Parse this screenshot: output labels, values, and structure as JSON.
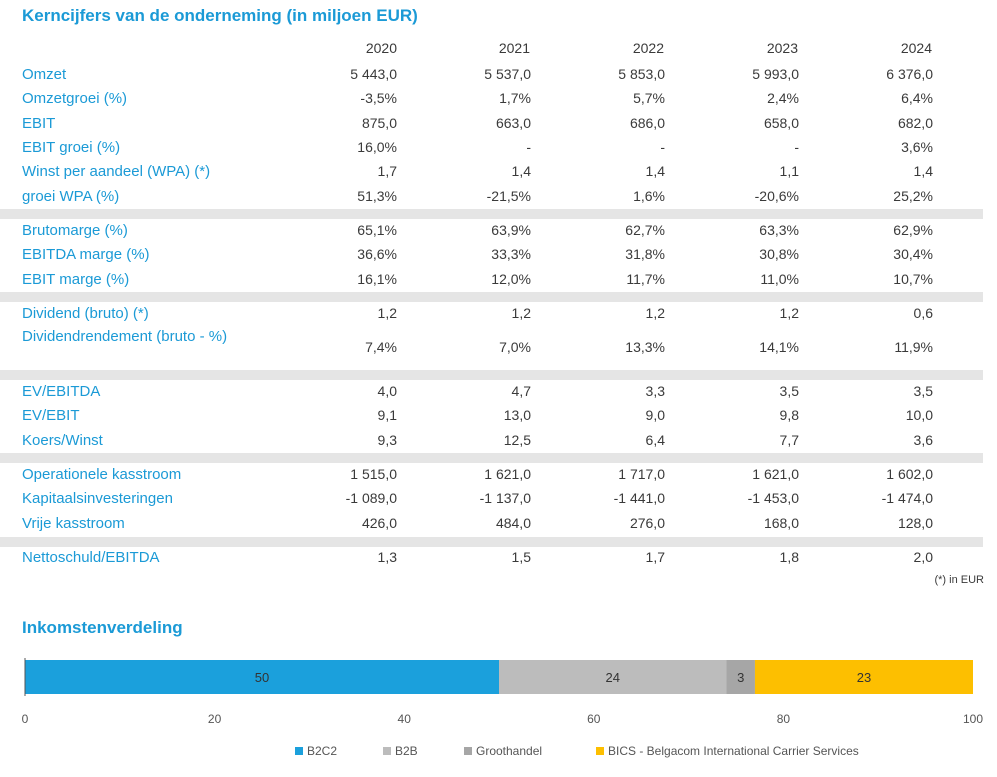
{
  "table": {
    "title": "Kerncijfers van de onderneming (in miljoen EUR)",
    "years": [
      "2020",
      "2021",
      "2022",
      "2023",
      "2024"
    ],
    "rows": [
      {
        "label": "Omzet",
        "values": [
          "5 443,0",
          "5 537,0",
          "5 853,0",
          "5 993,0",
          "6 376,0"
        ]
      },
      {
        "label": "Omzetgroei (%)",
        "values": [
          "-3,5%",
          "1,7%",
          "5,7%",
          "2,4%",
          "6,4%"
        ]
      },
      {
        "label": "EBIT",
        "values": [
          "875,0",
          "663,0",
          "686,0",
          "658,0",
          "682,0"
        ]
      },
      {
        "label": "EBIT groei (%)",
        "values": [
          "16,0%",
          "-",
          "-",
          "-",
          "3,6%"
        ]
      },
      {
        "label": "Winst per aandeel (WPA) (*)",
        "values": [
          "1,7",
          "1,4",
          "1,4",
          "1,1",
          "1,4"
        ]
      },
      {
        "label": "groei WPA (%)",
        "values": [
          "51,3%",
          "-21,5%",
          "1,6%",
          "-20,6%",
          "25,2%"
        ]
      },
      {
        "label": "Brutomarge (%)",
        "values": [
          "65,1%",
          "63,9%",
          "62,7%",
          "63,3%",
          "62,9%"
        ]
      },
      {
        "label": "EBITDA marge (%)",
        "values": [
          "36,6%",
          "33,3%",
          "31,8%",
          "30,8%",
          "30,4%"
        ]
      },
      {
        "label": "EBIT marge (%)",
        "values": [
          "16,1%",
          "12,0%",
          "11,7%",
          "11,0%",
          "10,7%"
        ]
      },
      {
        "label": "Dividend (bruto) (*)",
        "values": [
          "1,2",
          "1,2",
          "1,2",
          "1,2",
          "0,6"
        ]
      },
      {
        "label": "Dividendrendement (bruto - %)",
        "values": [
          "7,4%",
          "7,0%",
          "13,3%",
          "14,1%",
          "11,9%"
        ]
      },
      {
        "label": "EV/EBITDA",
        "values": [
          "4,0",
          "4,7",
          "3,3",
          "3,5",
          "3,5"
        ]
      },
      {
        "label": "EV/EBIT",
        "values": [
          "9,1",
          "13,0",
          "9,0",
          "9,8",
          "10,0"
        ]
      },
      {
        "label": "Koers/Winst",
        "values": [
          "9,3",
          "12,5",
          "6,4",
          "7,7",
          "3,6"
        ]
      },
      {
        "label": "Operationele kasstroom",
        "values": [
          "1 515,0",
          "1 621,0",
          "1 717,0",
          "1 621,0",
          "1 602,0"
        ]
      },
      {
        "label": "Kapitaalsinvesteringen",
        "values": [
          "-1 089,0",
          "-1 137,0",
          "-1 441,0",
          "-1 453,0",
          "-1 474,0"
        ]
      },
      {
        "label": "Vrije kasstroom",
        "values": [
          "426,0",
          "484,0",
          "276,0",
          "168,0",
          "128,0"
        ]
      },
      {
        "label": "Nettoschuld/EBITDA",
        "values": [
          "1,3",
          "1,5",
          "1,7",
          "1,8",
          "2,0"
        ]
      }
    ],
    "footnote": "(*) in EUR"
  },
  "chart_data": {
    "type": "bar",
    "stacked": true,
    "orientation": "horizontal",
    "title": "Inkomstenverdeling",
    "xlim": [
      0,
      100
    ],
    "xticks": [
      "0",
      "20",
      "40",
      "60",
      "80",
      "100"
    ],
    "legend_position": "bottom",
    "series": [
      {
        "name": "B2C2",
        "value": 50,
        "label": "50",
        "color": "#1ba0dc"
      },
      {
        "name": "B2B",
        "value": 24,
        "label": "24",
        "color": "#bcbcbc"
      },
      {
        "name": "Groothandel",
        "value": 3,
        "label": "3",
        "color": "#a6a6a6"
      },
      {
        "name": "BICS - Belgacom International Carrier Services",
        "value": 23,
        "label": "23",
        "color": "#fdbf00"
      }
    ]
  }
}
